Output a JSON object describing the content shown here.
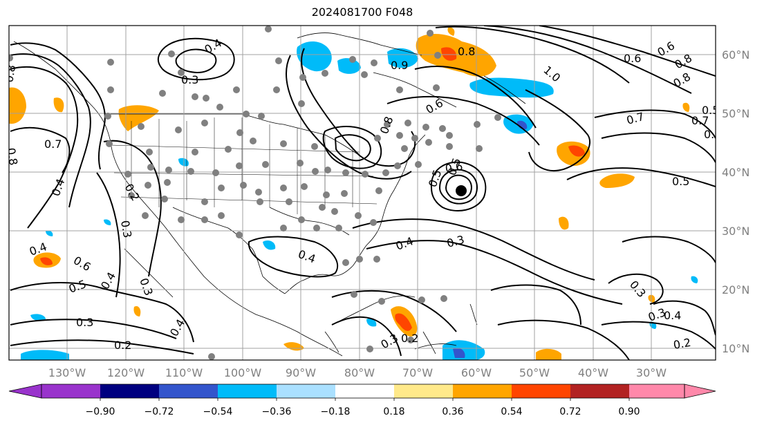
{
  "title": "2024081700 F048",
  "map": {
    "projection": "PlateCarree",
    "lon_range": [
      -138,
      -17
    ],
    "lat_range": [
      7,
      65
    ],
    "lon_ticks": [
      "130°W",
      "120°W",
      "110°W",
      "100°W",
      "90°W",
      "80°W",
      "70°W",
      "60°W",
      "50°W",
      "40°W",
      "30°W"
    ],
    "lat_ticks": [
      "10°N",
      "20°N",
      "30°N",
      "40°N",
      "50°N",
      "60°N"
    ],
    "tick_color": "#808080"
  },
  "contour_labels": [
    "0.4",
    "0.3",
    "0.8",
    "0.9",
    "0.8",
    "1.0",
    "0.7",
    "0.5",
    "0.6",
    "0.8",
    "0.8",
    "0.6",
    "0.6",
    "0.8",
    "0.7",
    "0.7",
    "0.8",
    "0.7",
    "0.4",
    "0.2",
    "0.3",
    "0.5",
    "0.6",
    "0.6",
    "0.4",
    "0.5",
    "0.4",
    "0.3",
    "0.4",
    "0.3",
    "0.5",
    "0.4",
    "0.3",
    "0.3",
    "0.2",
    "0.4",
    "0.3",
    "0.2",
    "0.3",
    "0.4",
    "0.5",
    "0.2"
  ],
  "storm_marker": {
    "label": "hurricane-center",
    "lon": -61.5,
    "lat": 36.5
  },
  "colorbar": {
    "ticks": [
      "−0.90",
      "−0.72",
      "−0.54",
      "−0.36",
      "−0.18",
      "0.18",
      "0.36",
      "0.54",
      "0.72",
      "0.90"
    ],
    "colors": [
      "#9933cc",
      "#000080",
      "#3355cc",
      "#00bbf9",
      "#aae0ff",
      "#ffffff",
      "#ffe98a",
      "#ffa500",
      "#ff4500",
      "#b22222",
      "#ff88aa"
    ],
    "extend": "both"
  }
}
